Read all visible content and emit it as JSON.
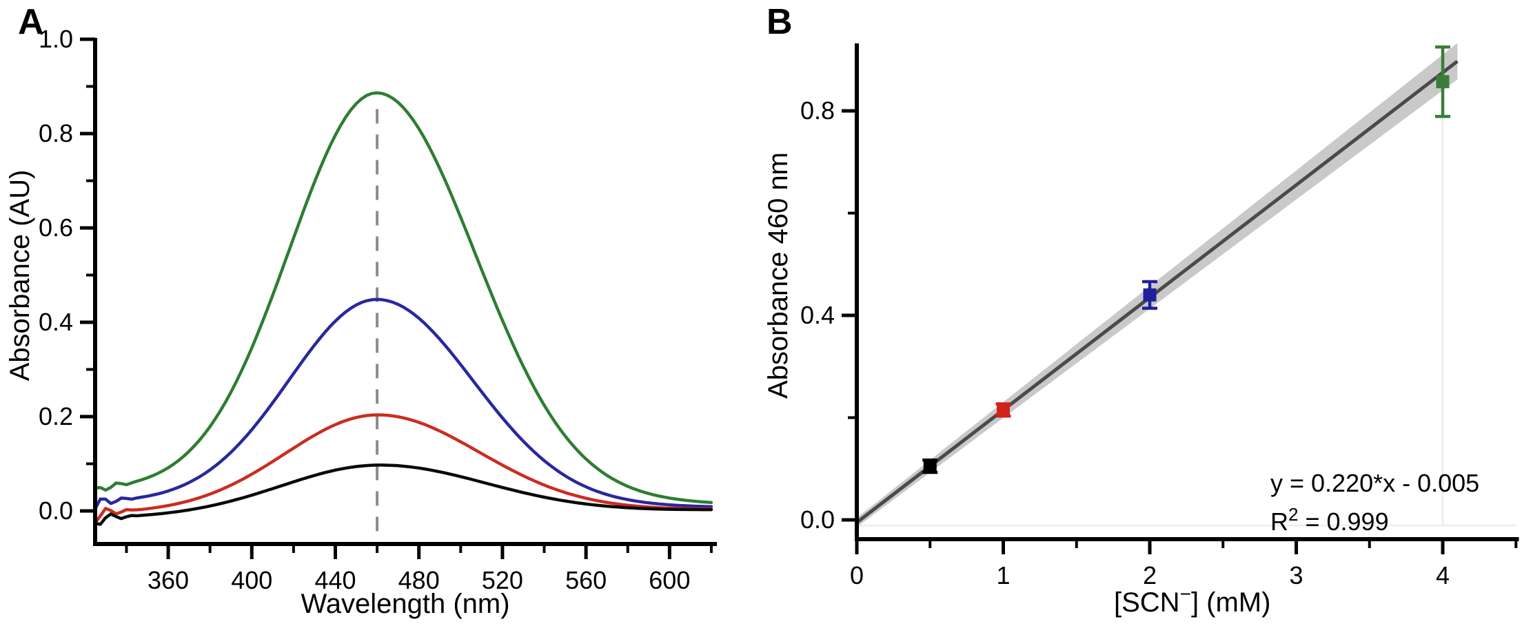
{
  "panels": {
    "a": {
      "label": "A"
    },
    "b": {
      "label": "B"
    }
  },
  "chart_data": [
    {
      "panel": "A",
      "type": "line",
      "title": "",
      "xlabel": "Wavelength (nm)",
      "ylabel": "Absorbance (AU)",
      "xlim": [
        325,
        622
      ],
      "ylim": [
        -0.07,
        1.0
      ],
      "x_major_ticks": [
        360,
        400,
        440,
        480,
        520,
        560,
        600
      ],
      "x_major_tick_labels": [
        "360",
        "400",
        "440",
        "480",
        "520",
        "560",
        "600"
      ],
      "x_minor_ticks": [
        340,
        380,
        420,
        460,
        500,
        540,
        580,
        620
      ],
      "y_major_ticks": [
        0.0,
        0.2,
        0.4,
        0.6,
        0.8,
        1.0
      ],
      "y_major_tick_labels": [
        "0.0",
        "0.2",
        "0.4",
        "0.6",
        "0.8",
        "1.0"
      ],
      "y_minor_ticks": [
        0.1,
        0.3,
        0.5,
        0.7,
        0.9
      ],
      "grid": false,
      "dashed_marker_line": {
        "x_nm": 460,
        "color": "#8c8c8c"
      },
      "series": [
        {
          "name": "green-spectrum",
          "color": "#2e7d32",
          "peak_nm": 460,
          "peak_au": 0.855,
          "sigma_left_nm": 42,
          "sigma_right_nm": 47,
          "baseline_left_au": 0.045,
          "baseline_right_au": 0.015,
          "noise_phase": 0
        },
        {
          "name": "blue-spectrum",
          "color": "#28289e",
          "peak_nm": 460,
          "peak_au": 0.435,
          "sigma_left_nm": 42,
          "sigma_right_nm": 46,
          "baseline_left_au": 0.018,
          "baseline_right_au": 0.008,
          "noise_phase": 1.6
        },
        {
          "name": "red-spectrum",
          "color": "#cb2c21",
          "peak_nm": 460,
          "peak_au": 0.205,
          "sigma_left_nm": 44,
          "sigma_right_nm": 49,
          "baseline_left_au": -0.005,
          "baseline_right_au": 0.003,
          "noise_phase": 3.1
        },
        {
          "name": "black-spectrum",
          "color": "#0a0a0a",
          "peak_nm": 460,
          "peak_au": 0.105,
          "sigma_left_nm": 46,
          "sigma_right_nm": 52,
          "baseline_left_au": -0.016,
          "baseline_right_au": 0.002,
          "noise_phase": 4.4
        }
      ]
    },
    {
      "panel": "B",
      "type": "scatter",
      "title": "",
      "xlabel_parts": {
        "prefix": "[SCN",
        "sup": "−",
        "suffix": "] (mM)"
      },
      "ylabel": "Absorbance 460 nm",
      "xlim": [
        0,
        4.5
      ],
      "ylim": [
        -0.04,
        0.93
      ],
      "x_major_ticks": [
        0,
        1,
        2,
        3,
        4
      ],
      "x_major_tick_labels": [
        "0",
        "1",
        "2",
        "3",
        "4"
      ],
      "x_minor_ticks": [
        0.5,
        1.5,
        2.5,
        3.5,
        4.5
      ],
      "y_major_ticks": [
        0.0,
        0.4,
        0.8
      ],
      "y_major_tick_labels": [
        "0.0",
        "0.4",
        "0.8"
      ],
      "y_minor_ticks": [
        0.2,
        0.6
      ],
      "gridlines": {
        "vertical_x": 4,
        "horizontal_y": -0.011,
        "color": "#ececec"
      },
      "points": [
        {
          "x": 0.5,
          "y": 0.105,
          "err": 0.012,
          "color": "#000000"
        },
        {
          "x": 1.0,
          "y": 0.215,
          "err": 0.012,
          "color": "#cf231c"
        },
        {
          "x": 2.0,
          "y": 0.44,
          "err": 0.026,
          "color": "#20209d"
        },
        {
          "x": 4.0,
          "y": 0.857,
          "err": 0.068,
          "color": "#3a7d39"
        }
      ],
      "fit": {
        "slope": 0.22,
        "intercept": -0.005,
        "x_start": 0,
        "x_end": 4.1,
        "line_color": "#4a4a4a",
        "band_color": "#c9c9c9",
        "band_halfwidth_at_0": 0.009,
        "band_halfwidth_slope": 0.0065
      },
      "equation_line1": "y = 0.220*x - 0.005",
      "equation_line2_parts": {
        "base": "R",
        "sup": "2",
        "rest": " = 0.999"
      }
    }
  ]
}
